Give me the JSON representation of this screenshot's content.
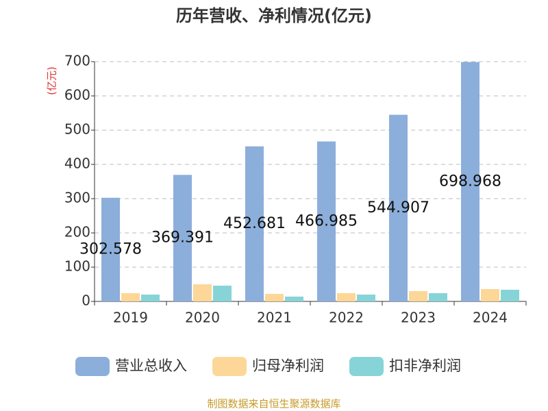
{
  "chart_data": {
    "type": "bar",
    "title": "历年营收、净利情况(亿元)",
    "y_unit": "(亿元)",
    "categories": [
      "2019",
      "2020",
      "2021",
      "2022",
      "2023",
      "2024"
    ],
    "series": [
      {
        "name": "营业总收入",
        "color": "#8caedb",
        "values": [
          302.578,
          369.391,
          452.681,
          466.985,
          544.907,
          698.968
        ]
      },
      {
        "name": "归母净利润",
        "color": "#fdd797",
        "values": [
          24,
          50,
          22,
          24,
          30,
          36
        ]
      },
      {
        "name": "扣非净利润",
        "color": "#86d4d7",
        "values": [
          20,
          46,
          14,
          20,
          24,
          34
        ]
      }
    ],
    "labeled_series": 0,
    "ylim": [
      0,
      700
    ],
    "yticks": [
      0,
      100,
      200,
      300,
      400,
      500,
      600,
      700
    ],
    "grid": true,
    "source": "制图数据来自恒生聚源数据库"
  }
}
